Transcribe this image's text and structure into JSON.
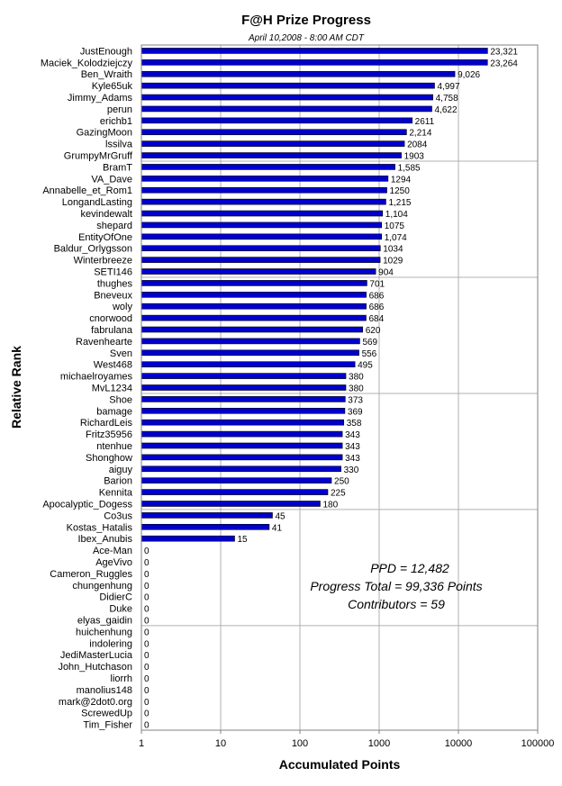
{
  "chart_data": {
    "type": "bar",
    "orientation": "horizontal",
    "title": "F@H Prize Progress",
    "subtitle": "April 10,2008 -  8:00 AM CDT",
    "xlabel": "Accumulated Points",
    "ylabel": "Relative Rank",
    "x_scale": "log",
    "xlim": [
      1,
      100000
    ],
    "x_ticks": [
      "1",
      "10",
      "100",
      "1000",
      "10000",
      "100000"
    ],
    "grid": "vertical lines at each decade; horizontal separators every 10 ranks",
    "bar_color": "#0000CC",
    "categories": [
      "JustEnough",
      "Maciek_Kolodziejczy",
      "Ben_Wraith",
      "Kyle65uk",
      "Jimmy_Adams",
      "perun",
      "erichb1",
      "GazingMoon",
      "lssilva",
      "GrumpyMrGruff",
      "BramT",
      "VA_Dave",
      "Annabelle_et_Rom1",
      "LongandLasting",
      "kevindewalt",
      "shepard",
      "EntityOfOne",
      "Baldur_Orlygsson",
      "Winterbreeze",
      "SETI146",
      "thughes",
      "Bneveux",
      "woly",
      "cnorwood",
      "fabrulana",
      "Ravenhearte",
      "Sven",
      "West468",
      "michaelroyames",
      "MvL1234",
      "Shoe",
      "bamage",
      "RichardLeis",
      "Fritz35956",
      "ntenhue",
      "Shonghow",
      "aiguy",
      "Barion",
      "Kennita",
      "Apocalyptic_Dogess",
      "Co3us",
      "Kostas_Hatalis",
      "Ibex_Anubis",
      "Ace-Man",
      "AgeVivo",
      "Cameron_Ruggles",
      "chungenhung",
      "DidierC",
      "Duke",
      "elyas_gaidin",
      "huichenhung",
      "indolering",
      "JediMasterLucia",
      "John_Hutchason",
      "liorrh",
      "manolius148",
      "mark@2dot0.org",
      "ScrewedUp",
      "Tim_Fisher"
    ],
    "values": [
      23321,
      23264,
      9026,
      4997,
      4758,
      4622,
      2611,
      2214,
      2084,
      1903,
      1585,
      1294,
      1250,
      1215,
      1104,
      1075,
      1074,
      1034,
      1029,
      904,
      701,
      686,
      686,
      684,
      620,
      569,
      556,
      495,
      380,
      380,
      373,
      369,
      358,
      343,
      343,
      343,
      330,
      250,
      225,
      180,
      45,
      41,
      15,
      0,
      0,
      0,
      0,
      0,
      0,
      0,
      0,
      0,
      0,
      0,
      0,
      0,
      0,
      0,
      0
    ],
    "value_labels": [
      "23,321",
      "23,264",
      "9,026",
      "4,997",
      "4,758",
      "4,622",
      "2611",
      "2,214",
      "2084",
      "1903",
      "1,585",
      "1294",
      "1250",
      "1,215",
      "1,104",
      "1075",
      "1,074",
      "1034",
      "1029",
      "904",
      "701",
      "686",
      "686",
      "684",
      "620",
      "569",
      "556",
      "495",
      "380",
      "380",
      "373",
      "369",
      "358",
      "343",
      "343",
      "343",
      "330",
      "250",
      "225",
      "180",
      "45",
      "41",
      "15",
      "0",
      "0",
      "0",
      "0",
      "0",
      "0",
      "0",
      "0",
      "0",
      "0",
      "0",
      "0",
      "0",
      "0",
      "0",
      "0"
    ],
    "annotations": [
      "PPD = 12,482",
      "Progress Total = 99,336 Points",
      "Contributors = 59"
    ]
  }
}
